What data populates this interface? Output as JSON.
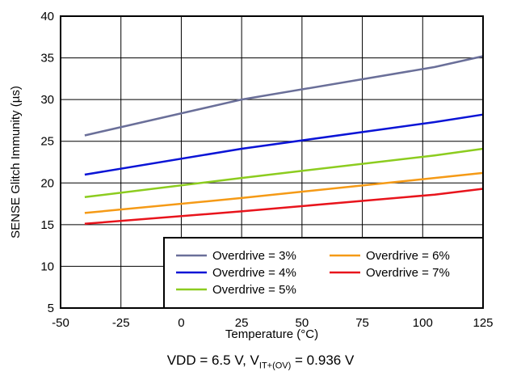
{
  "caption": {
    "prefix": "VDD = 6.5 V, V",
    "subscript": "IT+(OV)",
    "suffix": " = 0.936 V"
  },
  "chart_data": {
    "type": "line",
    "xlabel": "Temperature (°C)",
    "ylabel": "SENSE Glitch Immunity (µs)",
    "xlim": [
      -50,
      125
    ],
    "ylim": [
      5,
      40
    ],
    "xticks": [
      "-50",
      "-25",
      "0",
      "25",
      "50",
      "75",
      "100",
      "125"
    ],
    "yticks": [
      "5",
      "10",
      "15",
      "20",
      "25",
      "30",
      "35",
      "40"
    ],
    "grid": true,
    "legend_position": "bottom-right",
    "series": [
      {
        "name": "Overdrive = 3%",
        "color": "#6a6f99",
        "x": [
          -40,
          25,
          105,
          125
        ],
        "y": [
          25.7,
          30.0,
          33.9,
          35.2
        ]
      },
      {
        "name": "Overdrive = 4%",
        "color": "#0a14d6",
        "x": [
          -40,
          25,
          105,
          125
        ],
        "y": [
          21.0,
          24.1,
          27.3,
          28.2
        ]
      },
      {
        "name": "Overdrive = 5%",
        "color": "#8ccc1f",
        "x": [
          -40,
          25,
          105,
          125
        ],
        "y": [
          18.3,
          20.6,
          23.3,
          24.1
        ]
      },
      {
        "name": "Overdrive = 6%",
        "color": "#f59a16",
        "x": [
          -40,
          25,
          105,
          125
        ],
        "y": [
          16.4,
          18.2,
          20.6,
          21.2
        ]
      },
      {
        "name": "Overdrive = 7%",
        "color": "#e8141c",
        "x": [
          -40,
          25,
          105,
          125
        ],
        "y": [
          15.1,
          16.6,
          18.6,
          19.3
        ]
      }
    ]
  }
}
